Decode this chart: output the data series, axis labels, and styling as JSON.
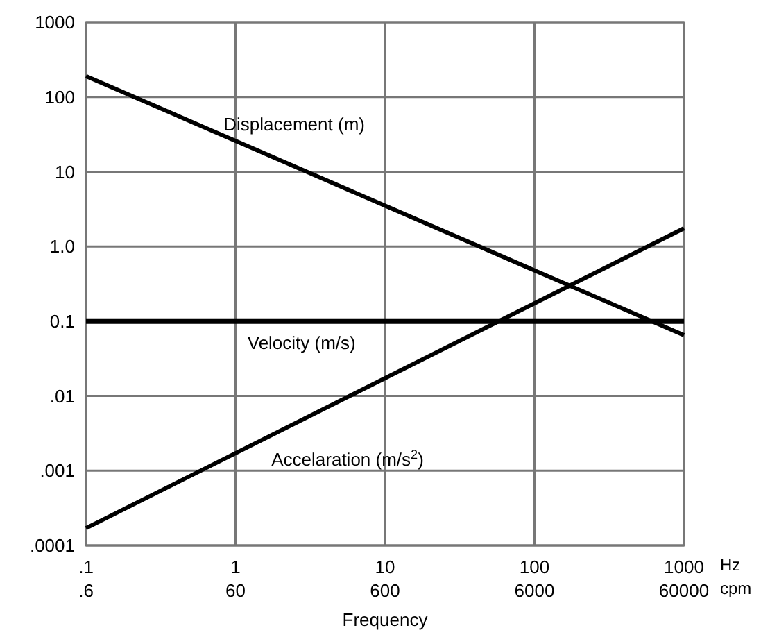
{
  "chart_data": {
    "type": "line",
    "xlabel": "Frequency",
    "log": "xy",
    "grid": true,
    "marker": "none",
    "line_style": "solid",
    "xlim": [
      0.1,
      1000
    ],
    "ylim": [
      0.0001,
      1000
    ],
    "xticks": [
      {
        "value": 0.1,
        "label": ".1"
      },
      1,
      10,
      100,
      1000
    ],
    "yticks": [
      {
        "value": 0.0001,
        "label": ".0001"
      },
      {
        "value": 0.001,
        "label": ".001"
      },
      {
        "value": 0.01,
        "label": ".01"
      },
      0.1,
      {
        "value": 1,
        "label": "1.0"
      },
      10,
      100,
      1000
    ],
    "annotations": [
      "Hz",
      "cpm",
      ".6",
      "60",
      "600",
      "6000",
      "60000"
    ],
    "x": [
      0.1,
      1000
    ],
    "series": [
      {
        "name": "Displacement (m)",
        "color": "#000000",
        "values": [
          190,
          0.065
        ]
      },
      {
        "name": "Velocity (m/s)",
        "color": "#000000",
        "values": [
          0.1,
          0.1
        ]
      },
      {
        "name": "Accelaration (m/s$^{2}$)",
        "color": "#000000",
        "values": [
          0.00017,
          1.75
        ]
      }
    ]
  }
}
